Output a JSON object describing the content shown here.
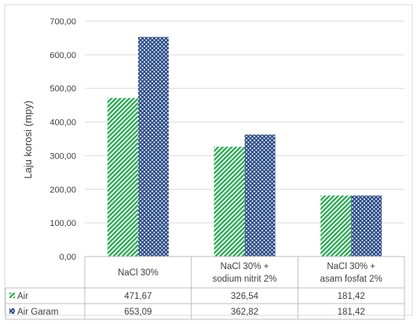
{
  "chart_data": {
    "type": "bar",
    "ylabel": "Laju korosi (mpy)",
    "ylim": [
      0,
      700
    ],
    "ytick_step": 100,
    "ytick_labels": [
      "0,00",
      "100,00",
      "200,00",
      "300,00",
      "400,00",
      "500,00",
      "600,00",
      "700,00"
    ],
    "grid": true,
    "categories": [
      [
        "NaCl 30%"
      ],
      [
        "NaCl 30% +",
        "sodium nitrit 2%"
      ],
      [
        "NaCl 30% +",
        "asam fosfat 2%"
      ]
    ],
    "series": [
      {
        "name": "Air",
        "color": "#1fa84a",
        "pattern": "diagonal-stripes",
        "values": [
          471.67,
          326.54,
          181.42
        ],
        "labels": [
          "471,67",
          "326,54",
          "181,42"
        ]
      },
      {
        "name": "Air Garam",
        "color": "#2e4f8a",
        "pattern": "dotted-grid",
        "values": [
          653.09,
          362.82,
          181.42
        ],
        "labels": [
          "653,09",
          "362,82",
          "181,42"
        ]
      }
    ],
    "legend": "data-table"
  }
}
